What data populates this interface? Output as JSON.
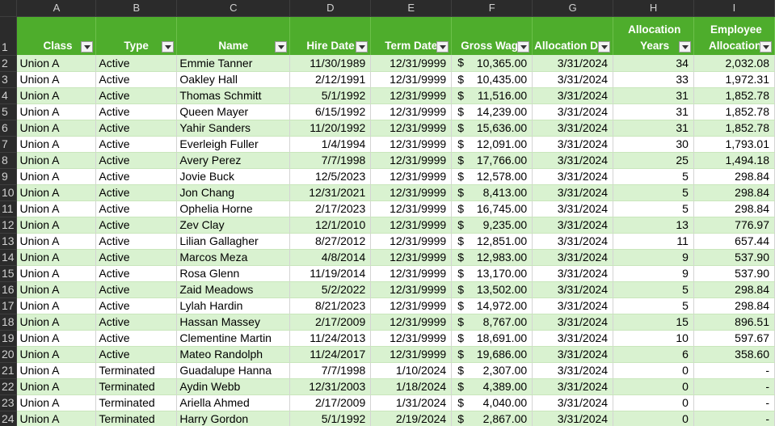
{
  "column_letters": [
    "A",
    "B",
    "C",
    "D",
    "E",
    "F",
    "G",
    "H",
    "I"
  ],
  "header": {
    "row_number": "1",
    "class": "Class",
    "type": "Type",
    "name": "Name",
    "hire_date": "Hire Date",
    "term_date": "Term Date",
    "gross_wage": "Gross Wage",
    "allocation_date": "Allocation Da",
    "allocation_years_line1": "Allocation",
    "allocation_years_line2": "Years",
    "employee_allocation_line1": "Employee",
    "employee_allocation_line2": "Allocation"
  },
  "currency_symbol": "$",
  "header_color": "#4ead2c",
  "band_color": "#d9f2d0",
  "rows": [
    {
      "n": "2",
      "cls": "Union A",
      "type": "Active",
      "name": "Emmie Tanner",
      "hire": "11/30/1989",
      "term": "12/31/9999",
      "wage": "10,365.00",
      "alloc_date": "3/31/2024",
      "years": "34",
      "alloc": "2,032.08"
    },
    {
      "n": "3",
      "cls": "Union A",
      "type": "Active",
      "name": "Oakley Hall",
      "hire": "2/12/1991",
      "term": "12/31/9999",
      "wage": "10,435.00",
      "alloc_date": "3/31/2024",
      "years": "33",
      "alloc": "1,972.31"
    },
    {
      "n": "4",
      "cls": "Union A",
      "type": "Active",
      "name": "Thomas Schmitt",
      "hire": "5/1/1992",
      "term": "12/31/9999",
      "wage": "11,516.00",
      "alloc_date": "3/31/2024",
      "years": "31",
      "alloc": "1,852.78"
    },
    {
      "n": "5",
      "cls": "Union A",
      "type": "Active",
      "name": "Queen Mayer",
      "hire": "6/15/1992",
      "term": "12/31/9999",
      "wage": "14,239.00",
      "alloc_date": "3/31/2024",
      "years": "31",
      "alloc": "1,852.78"
    },
    {
      "n": "6",
      "cls": "Union A",
      "type": "Active",
      "name": "Yahir Sanders",
      "hire": "11/20/1992",
      "term": "12/31/9999",
      "wage": "15,636.00",
      "alloc_date": "3/31/2024",
      "years": "31",
      "alloc": "1,852.78"
    },
    {
      "n": "7",
      "cls": "Union A",
      "type": "Active",
      "name": "Everleigh Fuller",
      "hire": "1/4/1994",
      "term": "12/31/9999",
      "wage": "12,091.00",
      "alloc_date": "3/31/2024",
      "years": "30",
      "alloc": "1,793.01"
    },
    {
      "n": "8",
      "cls": "Union A",
      "type": "Active",
      "name": "Avery Perez",
      "hire": "7/7/1998",
      "term": "12/31/9999",
      "wage": "17,766.00",
      "alloc_date": "3/31/2024",
      "years": "25",
      "alloc": "1,494.18"
    },
    {
      "n": "9",
      "cls": "Union A",
      "type": "Active",
      "name": "Jovie Buck",
      "hire": "12/5/2023",
      "term": "12/31/9999",
      "wage": "12,578.00",
      "alloc_date": "3/31/2024",
      "years": "5",
      "alloc": "298.84"
    },
    {
      "n": "10",
      "cls": "Union A",
      "type": "Active",
      "name": "Jon Chang",
      "hire": "12/31/2021",
      "term": "12/31/9999",
      "wage": "8,413.00",
      "alloc_date": "3/31/2024",
      "years": "5",
      "alloc": "298.84"
    },
    {
      "n": "11",
      "cls": "Union A",
      "type": "Active",
      "name": "Ophelia Horne",
      "hire": "2/17/2023",
      "term": "12/31/9999",
      "wage": "16,745.00",
      "alloc_date": "3/31/2024",
      "years": "5",
      "alloc": "298.84"
    },
    {
      "n": "12",
      "cls": "Union A",
      "type": "Active",
      "name": "Zev Clay",
      "hire": "12/1/2010",
      "term": "12/31/9999",
      "wage": "9,235.00",
      "alloc_date": "3/31/2024",
      "years": "13",
      "alloc": "776.97"
    },
    {
      "n": "13",
      "cls": "Union A",
      "type": "Active",
      "name": "Lilian Gallagher",
      "hire": "8/27/2012",
      "term": "12/31/9999",
      "wage": "12,851.00",
      "alloc_date": "3/31/2024",
      "years": "11",
      "alloc": "657.44"
    },
    {
      "n": "14",
      "cls": "Union A",
      "type": "Active",
      "name": "Marcos Meza",
      "hire": "4/8/2014",
      "term": "12/31/9999",
      "wage": "12,983.00",
      "alloc_date": "3/31/2024",
      "years": "9",
      "alloc": "537.90"
    },
    {
      "n": "15",
      "cls": "Union A",
      "type": "Active",
      "name": "Rosa Glenn",
      "hire": "11/19/2014",
      "term": "12/31/9999",
      "wage": "13,170.00",
      "alloc_date": "3/31/2024",
      "years": "9",
      "alloc": "537.90"
    },
    {
      "n": "16",
      "cls": "Union A",
      "type": "Active",
      "name": "Zaid Meadows",
      "hire": "5/2/2022",
      "term": "12/31/9999",
      "wage": "13,502.00",
      "alloc_date": "3/31/2024",
      "years": "5",
      "alloc": "298.84"
    },
    {
      "n": "17",
      "cls": "Union A",
      "type": "Active",
      "name": "Lylah Hardin",
      "hire": "8/21/2023",
      "term": "12/31/9999",
      "wage": "14,972.00",
      "alloc_date": "3/31/2024",
      "years": "5",
      "alloc": "298.84"
    },
    {
      "n": "18",
      "cls": "Union A",
      "type": "Active",
      "name": "Hassan Massey",
      "hire": "2/17/2009",
      "term": "12/31/9999",
      "wage": "8,767.00",
      "alloc_date": "3/31/2024",
      "years": "15",
      "alloc": "896.51"
    },
    {
      "n": "19",
      "cls": "Union A",
      "type": "Active",
      "name": "Clementine Martin",
      "hire": "11/24/2013",
      "term": "12/31/9999",
      "wage": "18,691.00",
      "alloc_date": "3/31/2024",
      "years": "10",
      "alloc": "597.67"
    },
    {
      "n": "20",
      "cls": "Union A",
      "type": "Active",
      "name": "Mateo Randolph",
      "hire": "11/24/2017",
      "term": "12/31/9999",
      "wage": "19,686.00",
      "alloc_date": "3/31/2024",
      "years": "6",
      "alloc": "358.60"
    },
    {
      "n": "21",
      "cls": "Union A",
      "type": "Terminated",
      "name": "Guadalupe Hanna",
      "hire": "7/7/1998",
      "term": "1/10/2024",
      "wage": "2,307.00",
      "alloc_date": "3/31/2024",
      "years": "0",
      "alloc": "-"
    },
    {
      "n": "22",
      "cls": "Union A",
      "type": "Terminated",
      "name": "Aydin Webb",
      "hire": "12/31/2003",
      "term": "1/18/2024",
      "wage": "4,389.00",
      "alloc_date": "3/31/2024",
      "years": "0",
      "alloc": "-"
    },
    {
      "n": "23",
      "cls": "Union A",
      "type": "Terminated",
      "name": "Ariella Ahmed",
      "hire": "2/17/2009",
      "term": "1/31/2024",
      "wage": "4,040.00",
      "alloc_date": "3/31/2024",
      "years": "0",
      "alloc": "-"
    },
    {
      "n": "24",
      "cls": "Union A",
      "type": "Terminated",
      "name": "Harry Gordon",
      "hire": "5/1/1992",
      "term": "2/19/2024",
      "wage": "2,867.00",
      "alloc_date": "3/31/2024",
      "years": "0",
      "alloc": "-"
    }
  ]
}
